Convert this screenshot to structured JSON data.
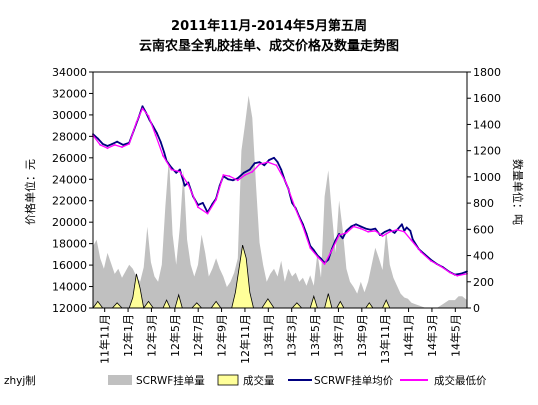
{
  "chart_data": {
    "type": "area",
    "title_lines": [
      "2011年11月-2014年5月第五周",
      "云南农垦全乳胶挂单、成交价格及数量走势图"
    ],
    "ylabel_left": "价格单位：元",
    "ylabel_right": "数量单位：吨",
    "yleft_range": [
      12000,
      34000
    ],
    "yleft_ticks": [
      "34000",
      "32000",
      "30000",
      "28000",
      "26000",
      "24000",
      "22000",
      "20000",
      "18000",
      "16000",
      "14000",
      "12000"
    ],
    "yright_range": [
      0,
      1800
    ],
    "yright_ticks": [
      "1800",
      "1600",
      "1400",
      "1200",
      "1000",
      "800",
      "600",
      "400",
      "200",
      "0"
    ],
    "x_range": [
      0,
      31
    ],
    "x_ticks": [
      "11年11月",
      "12年1月",
      "12年3月",
      "12年5月",
      "12年7月",
      "12年9月",
      "12年11月",
      "13年1月",
      "13年3月",
      "13年5月",
      "13年7月",
      "13年9月",
      "13年11月",
      "14年1月",
      "14年3月",
      "14年5月"
    ],
    "grid": false,
    "legend_position": "bottom",
    "credit": "zhyj制",
    "series": [
      {
        "name": "SCRWF挂单量",
        "axis": "right",
        "style": "area",
        "color": "#c0c0c0",
        "points": [
          [
            0,
            470
          ],
          [
            0.3,
            520
          ],
          [
            0.6,
            380
          ],
          [
            0.9,
            300
          ],
          [
            1.2,
            420
          ],
          [
            1.5,
            340
          ],
          [
            1.8,
            260
          ],
          [
            2.1,
            300
          ],
          [
            2.4,
            230
          ],
          [
            2.7,
            280
          ],
          [
            3.0,
            330
          ],
          [
            3.3,
            300
          ],
          [
            3.6,
            240
          ],
          [
            3.9,
            200
          ],
          [
            4.2,
            310
          ],
          [
            4.5,
            620
          ],
          [
            4.8,
            350
          ],
          [
            5.1,
            240
          ],
          [
            5.4,
            200
          ],
          [
            5.7,
            330
          ],
          [
            6.0,
            780
          ],
          [
            6.3,
            1150
          ],
          [
            6.6,
            560
          ],
          [
            6.9,
            330
          ],
          [
            7.2,
            620
          ],
          [
            7.5,
            1050
          ],
          [
            7.8,
            520
          ],
          [
            8.1,
            330
          ],
          [
            8.4,
            240
          ],
          [
            8.7,
            330
          ],
          [
            9.0,
            560
          ],
          [
            9.3,
            420
          ],
          [
            9.6,
            240
          ],
          [
            9.9,
            300
          ],
          [
            10.2,
            380
          ],
          [
            10.5,
            300
          ],
          [
            10.8,
            240
          ],
          [
            11.1,
            160
          ],
          [
            11.4,
            200
          ],
          [
            11.7,
            270
          ],
          [
            12.0,
            380
          ],
          [
            12.3,
            1200
          ],
          [
            12.6,
            1400
          ],
          [
            12.9,
            1620
          ],
          [
            13.2,
            1450
          ],
          [
            13.5,
            950
          ],
          [
            13.8,
            500
          ],
          [
            14.1,
            330
          ],
          [
            14.4,
            200
          ],
          [
            14.7,
            260
          ],
          [
            15.0,
            300
          ],
          [
            15.3,
            240
          ],
          [
            15.6,
            360
          ],
          [
            15.9,
            200
          ],
          [
            16.2,
            300
          ],
          [
            16.5,
            240
          ],
          [
            16.8,
            270
          ],
          [
            17.1,
            200
          ],
          [
            17.4,
            230
          ],
          [
            17.7,
            170
          ],
          [
            18.0,
            250
          ],
          [
            18.3,
            170
          ],
          [
            18.6,
            420
          ],
          [
            18.9,
            230
          ],
          [
            19.2,
            850
          ],
          [
            19.5,
            1050
          ],
          [
            19.8,
            720
          ],
          [
            20.1,
            420
          ],
          [
            20.4,
            820
          ],
          [
            20.7,
            600
          ],
          [
            21.0,
            300
          ],
          [
            21.3,
            200
          ],
          [
            21.6,
            160
          ],
          [
            21.9,
            110
          ],
          [
            22.2,
            200
          ],
          [
            22.5,
            120
          ],
          [
            22.8,
            200
          ],
          [
            23.1,
            330
          ],
          [
            23.4,
            460
          ],
          [
            23.7,
            380
          ],
          [
            24.0,
            290
          ],
          [
            24.3,
            600
          ],
          [
            24.6,
            330
          ],
          [
            24.9,
            230
          ],
          [
            25.2,
            170
          ],
          [
            25.5,
            110
          ],
          [
            25.8,
            80
          ],
          [
            26.1,
            70
          ],
          [
            26.4,
            40
          ],
          [
            26.7,
            30
          ],
          [
            27.0,
            20
          ],
          [
            27.3,
            10
          ],
          [
            27.6,
            0
          ],
          [
            28.0,
            0
          ],
          [
            28.5,
            0
          ],
          [
            29.0,
            30
          ],
          [
            29.5,
            60
          ],
          [
            30.0,
            60
          ],
          [
            30.3,
            90
          ],
          [
            30.6,
            90
          ],
          [
            31.0,
            60
          ]
        ]
      },
      {
        "name": "成交量",
        "axis": "right",
        "style": "area-outlined",
        "color": "#ffff99",
        "points": [
          [
            0,
            0
          ],
          [
            0.4,
            50
          ],
          [
            0.8,
            0
          ],
          [
            1.6,
            0
          ],
          [
            2.0,
            40
          ],
          [
            2.4,
            0
          ],
          [
            3.0,
            0
          ],
          [
            3.3,
            80
          ],
          [
            3.6,
            260
          ],
          [
            3.9,
            150
          ],
          [
            4.2,
            0
          ],
          [
            4.6,
            50
          ],
          [
            5.0,
            0
          ],
          [
            5.8,
            0
          ],
          [
            6.1,
            60
          ],
          [
            6.4,
            0
          ],
          [
            6.8,
            0
          ],
          [
            7.1,
            100
          ],
          [
            7.4,
            0
          ],
          [
            8.2,
            0
          ],
          [
            8.6,
            40
          ],
          [
            9.0,
            0
          ],
          [
            9.8,
            0
          ],
          [
            10.2,
            50
          ],
          [
            10.6,
            0
          ],
          [
            11.5,
            0
          ],
          [
            11.8,
            120
          ],
          [
            12.1,
            300
          ],
          [
            12.4,
            480
          ],
          [
            12.7,
            380
          ],
          [
            13.0,
            120
          ],
          [
            13.3,
            0
          ],
          [
            14.0,
            0
          ],
          [
            14.5,
            70
          ],
          [
            15.0,
            0
          ],
          [
            16.5,
            0
          ],
          [
            16.9,
            40
          ],
          [
            17.3,
            0
          ],
          [
            18.0,
            0
          ],
          [
            18.3,
            90
          ],
          [
            18.6,
            0
          ],
          [
            19.2,
            0
          ],
          [
            19.5,
            110
          ],
          [
            19.8,
            0
          ],
          [
            20.2,
            0
          ],
          [
            20.5,
            50
          ],
          [
            20.8,
            0
          ],
          [
            22.6,
            0
          ],
          [
            22.9,
            40
          ],
          [
            23.2,
            0
          ],
          [
            24.0,
            0
          ],
          [
            24.3,
            60
          ],
          [
            24.6,
            0
          ],
          [
            31.0,
            0
          ]
        ]
      },
      {
        "name": "SCRWF挂单均价",
        "axis": "left",
        "style": "line",
        "color": "#000080",
        "points": [
          [
            0,
            28200
          ],
          [
            0.4,
            27800
          ],
          [
            0.8,
            27300
          ],
          [
            1.2,
            27100
          ],
          [
            1.6,
            27300
          ],
          [
            2.0,
            27500
          ],
          [
            2.5,
            27200
          ],
          [
            3.0,
            27400
          ],
          [
            3.4,
            28600
          ],
          [
            3.8,
            29800
          ],
          [
            4.1,
            30800
          ],
          [
            4.4,
            30200
          ],
          [
            4.7,
            29500
          ],
          [
            5.0,
            28900
          ],
          [
            5.3,
            28300
          ],
          [
            5.6,
            27500
          ],
          [
            5.9,
            26500
          ],
          [
            6.1,
            25700
          ],
          [
            6.5,
            25100
          ],
          [
            6.9,
            24600
          ],
          [
            7.2,
            24900
          ],
          [
            7.6,
            23400
          ],
          [
            7.9,
            23700
          ],
          [
            8.3,
            22400
          ],
          [
            8.7,
            21600
          ],
          [
            9.1,
            21800
          ],
          [
            9.5,
            20900
          ],
          [
            9.9,
            21700
          ],
          [
            10.2,
            22200
          ],
          [
            10.5,
            23400
          ],
          [
            10.8,
            24300
          ],
          [
            11.2,
            24000
          ],
          [
            11.6,
            23900
          ],
          [
            12.0,
            24100
          ],
          [
            12.5,
            24600
          ],
          [
            13.0,
            24900
          ],
          [
            13.4,
            25500
          ],
          [
            13.8,
            25600
          ],
          [
            14.2,
            25300
          ],
          [
            14.6,
            25800
          ],
          [
            15.0,
            26000
          ],
          [
            15.3,
            25600
          ],
          [
            15.6,
            24900
          ],
          [
            15.9,
            23900
          ],
          [
            16.2,
            23100
          ],
          [
            16.5,
            21800
          ],
          [
            16.8,
            21300
          ],
          [
            17.1,
            20500
          ],
          [
            17.4,
            19800
          ],
          [
            17.7,
            18900
          ],
          [
            18.0,
            17800
          ],
          [
            18.3,
            17400
          ],
          [
            18.6,
            16900
          ],
          [
            18.9,
            16600
          ],
          [
            19.2,
            16200
          ],
          [
            19.5,
            16500
          ],
          [
            19.8,
            17500
          ],
          [
            20.1,
            18300
          ],
          [
            20.4,
            18900
          ],
          [
            20.7,
            18500
          ],
          [
            21.0,
            19200
          ],
          [
            21.4,
            19600
          ],
          [
            21.8,
            19800
          ],
          [
            22.2,
            19600
          ],
          [
            22.6,
            19400
          ],
          [
            23.0,
            19300
          ],
          [
            23.4,
            19400
          ],
          [
            23.8,
            18800
          ],
          [
            24.2,
            19100
          ],
          [
            24.6,
            19300
          ],
          [
            25.0,
            19000
          ],
          [
            25.3,
            19400
          ],
          [
            25.6,
            19800
          ],
          [
            25.8,
            19200
          ],
          [
            26.0,
            19500
          ],
          [
            26.3,
            19200
          ],
          [
            26.5,
            18400
          ],
          [
            27.0,
            17500
          ],
          [
            27.5,
            17000
          ],
          [
            28.0,
            16500
          ],
          [
            28.5,
            16100
          ],
          [
            29.0,
            15800
          ],
          [
            29.5,
            15400
          ],
          [
            30.0,
            15100
          ],
          [
            30.5,
            15200
          ],
          [
            31.0,
            15400
          ]
        ]
      },
      {
        "name": "成交最低价",
        "axis": "left",
        "style": "line",
        "color": "#ff00ff",
        "points": [
          [
            0,
            28100
          ],
          [
            0.6,
            27200
          ],
          [
            1.2,
            26900
          ],
          [
            1.8,
            27200
          ],
          [
            2.4,
            27000
          ],
          [
            3.0,
            27300
          ],
          [
            3.6,
            29300
          ],
          [
            4.1,
            30600
          ],
          [
            4.6,
            29900
          ],
          [
            5.2,
            28100
          ],
          [
            5.8,
            26200
          ],
          [
            6.5,
            24900
          ],
          [
            7.2,
            24700
          ],
          [
            7.9,
            23500
          ],
          [
            8.7,
            21400
          ],
          [
            9.5,
            20800
          ],
          [
            10.2,
            22100
          ],
          [
            10.8,
            24400
          ],
          [
            11.3,
            24300
          ],
          [
            12.0,
            23900
          ],
          [
            12.6,
            24400
          ],
          [
            13.2,
            24700
          ],
          [
            13.8,
            25400
          ],
          [
            14.5,
            25600
          ],
          [
            15.2,
            25300
          ],
          [
            16.0,
            23700
          ],
          [
            16.8,
            21200
          ],
          [
            17.4,
            19600
          ],
          [
            18.0,
            17600
          ],
          [
            18.6,
            16800
          ],
          [
            19.2,
            16100
          ],
          [
            19.8,
            17400
          ],
          [
            20.4,
            18800
          ],
          [
            21.0,
            19000
          ],
          [
            21.6,
            19600
          ],
          [
            22.2,
            19400
          ],
          [
            22.8,
            19100
          ],
          [
            23.4,
            19200
          ],
          [
            24.0,
            18700
          ],
          [
            24.6,
            19100
          ],
          [
            25.2,
            19300
          ],
          [
            25.8,
            19100
          ],
          [
            26.4,
            18300
          ],
          [
            27.2,
            17200
          ],
          [
            28.0,
            16400
          ],
          [
            28.8,
            15900
          ],
          [
            29.6,
            15300
          ],
          [
            30.2,
            15000
          ],
          [
            31.0,
            15200
          ]
        ]
      }
    ]
  }
}
